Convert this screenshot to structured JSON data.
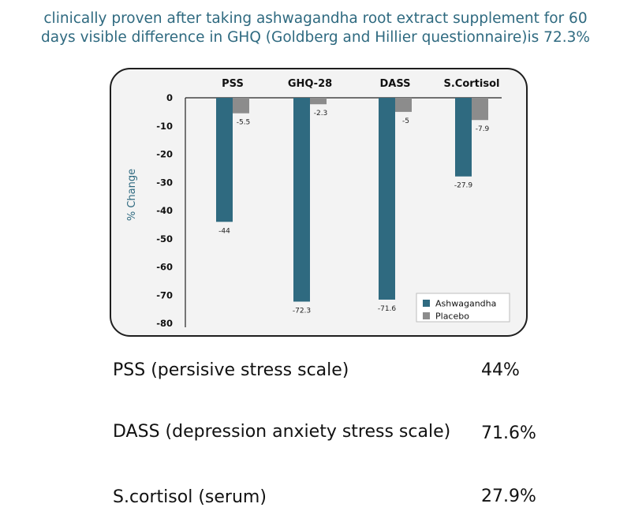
{
  "headline": {
    "line1": "clinically proven after taking ashwagandha root extract supplement for 60",
    "line2": "days visible difference in GHQ (Goldberg and Hillier questionnaire)is 72.3%"
  },
  "chart_data": {
    "type": "bar",
    "categories": [
      "PSS",
      "GHQ-28",
      "DASS",
      "S.Cortisol"
    ],
    "series": [
      {
        "name": "Ashwagandha",
        "values": [
          -44,
          -72.3,
          -71.6,
          -27.9
        ],
        "color": "#2f6a80"
      },
      {
        "name": "Placebo",
        "values": [
          -5.5,
          -2.3,
          -5,
          -7.9
        ],
        "color": "#8c8c8c"
      }
    ],
    "data_labels": [
      [
        "-44",
        "-72.3",
        "-71.6",
        "-27.9"
      ],
      [
        "-5.5",
        "-2.3",
        "-5",
        "-7.9"
      ]
    ],
    "ylabel": "% Change",
    "yticks": [
      0,
      -10,
      -20,
      -30,
      -40,
      -50,
      -60,
      -70,
      -80
    ],
    "ylim": [
      -80,
      0
    ],
    "category_axis_position": "top",
    "legend_position": "bottom-right",
    "grid": false
  },
  "metrics": [
    {
      "label": "PSS (persisive stress scale)",
      "value": "44%"
    },
    {
      "label": "DASS (depression anxiety stress scale)",
      "value": "71.6%"
    },
    {
      "label": "S.cortisol (serum)",
      "value": "27.9%"
    }
  ]
}
